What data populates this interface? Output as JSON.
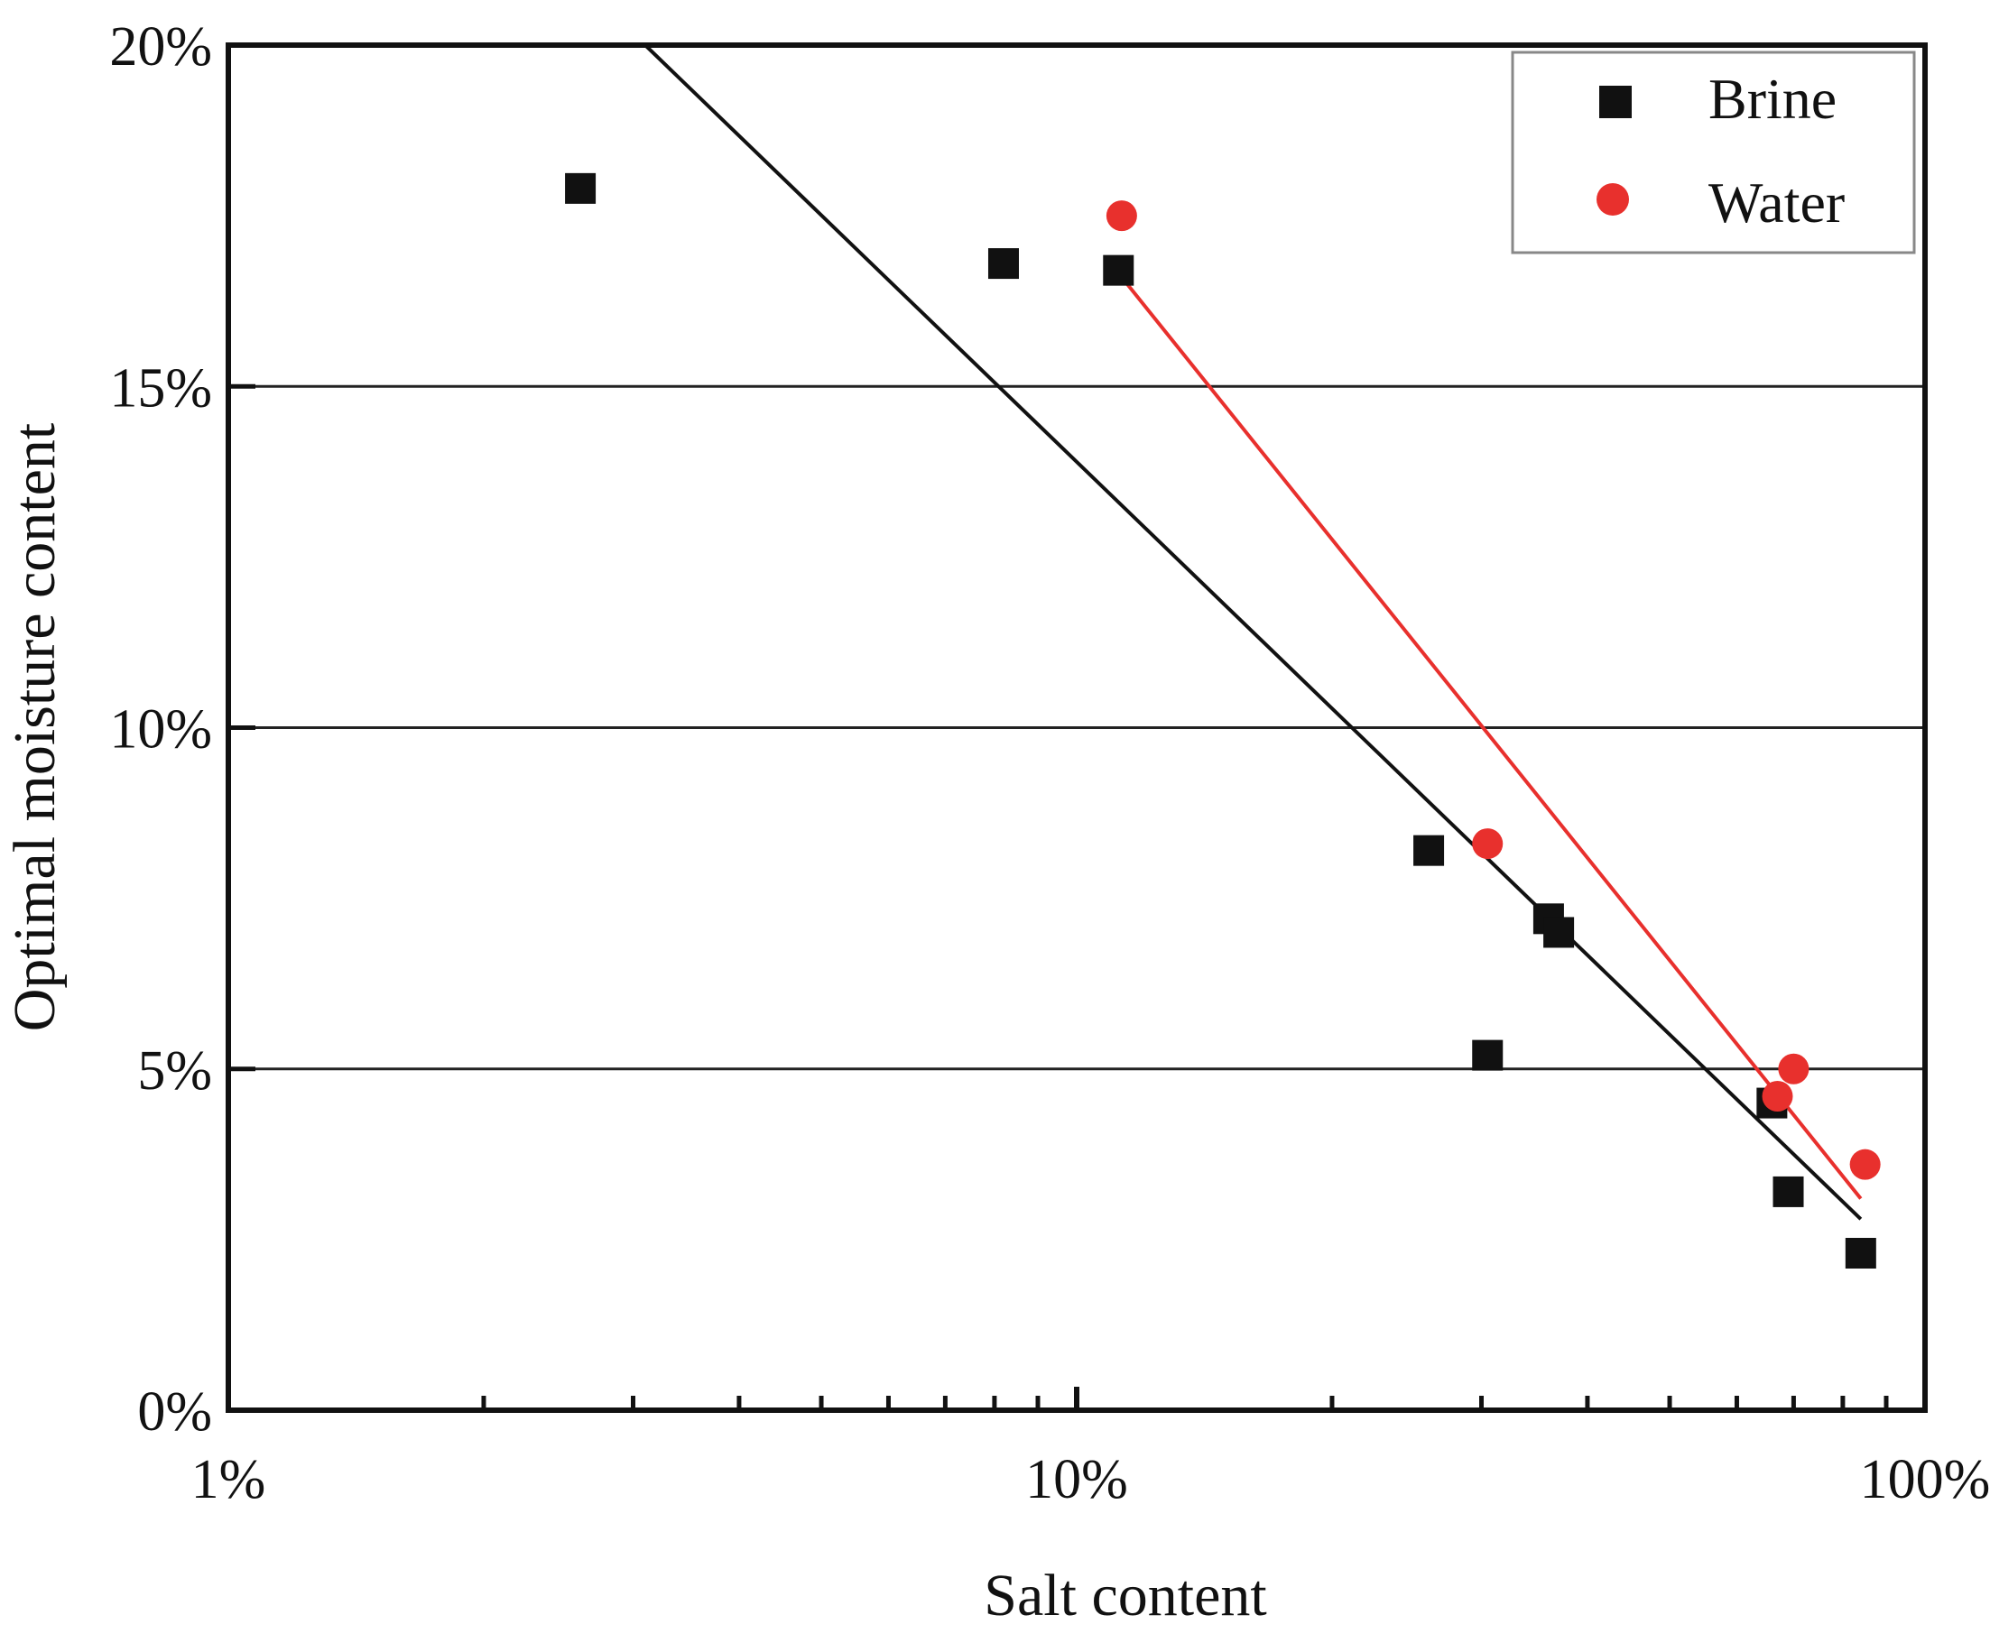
{
  "chart_data": {
    "type": "scatter",
    "title": "",
    "xlabel": "Salt content",
    "ylabel": "Optimal moisture content",
    "xscale": "log",
    "xlim": [
      1,
      100
    ],
    "ylim": [
      0,
      20
    ],
    "x_ticks": [
      {
        "value": 1,
        "label": "1%"
      },
      {
        "value": 10,
        "label": "10%"
      },
      {
        "value": 100,
        "label": "100%"
      }
    ],
    "y_ticks": [
      {
        "value": 0,
        "label": "0%"
      },
      {
        "value": 5,
        "label": "5%"
      },
      {
        "value": 10,
        "label": "10%"
      },
      {
        "value": 15,
        "label": "15%"
      },
      {
        "value": 20,
        "label": "20%"
      }
    ],
    "grid": "horizontal",
    "legend_position": "top-right",
    "series": [
      {
        "name": "Brine",
        "marker": "square",
        "color": "#111111",
        "points": [
          {
            "x": 2.6,
            "y": 17.9
          },
          {
            "x": 8.2,
            "y": 16.8
          },
          {
            "x": 11.2,
            "y": 16.7
          },
          {
            "x": 26,
            "y": 8.2
          },
          {
            "x": 30.5,
            "y": 5.2
          },
          {
            "x": 36,
            "y": 7.2
          },
          {
            "x": 37,
            "y": 7.0
          },
          {
            "x": 66,
            "y": 4.5
          },
          {
            "x": 69,
            "y": 3.2
          },
          {
            "x": 84,
            "y": 2.3
          }
        ],
        "trendline": [
          {
            "x": 3.1,
            "y": 20
          },
          {
            "x": 84,
            "y": 2.8
          }
        ]
      },
      {
        "name": "Water",
        "marker": "circle",
        "color": "#e8302d",
        "points": [
          {
            "x": 11.3,
            "y": 17.5
          },
          {
            "x": 30.5,
            "y": 8.3
          },
          {
            "x": 67,
            "y": 4.6
          },
          {
            "x": 70,
            "y": 5.0
          },
          {
            "x": 85,
            "y": 3.6
          }
        ],
        "trendline": [
          {
            "x": 11.3,
            "y": 16.6
          },
          {
            "x": 84,
            "y": 3.1
          }
        ]
      }
    ]
  }
}
